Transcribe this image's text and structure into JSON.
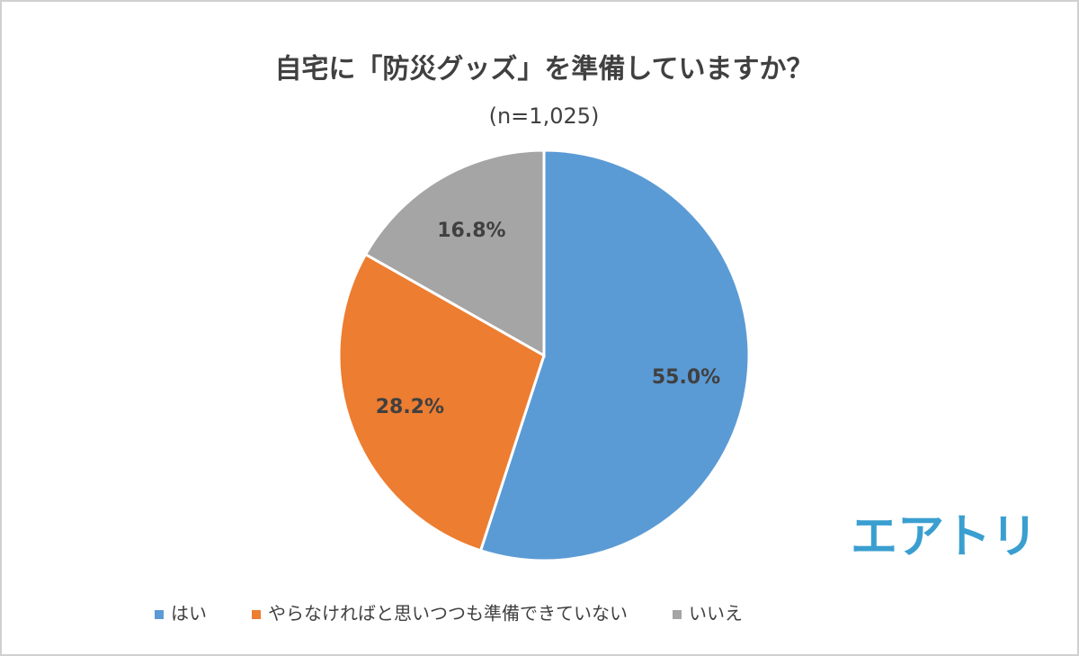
{
  "chart_data": {
    "type": "pie",
    "title": "自宅に「防災グッズ」を準備していますか？",
    "subtitle": "(n=1,025)",
    "categories": [
      "はい",
      "やらなければと思いつつも準備できていない",
      "いいえ"
    ],
    "values": [
      55.0,
      28.2,
      16.8
    ],
    "value_labels": [
      "55.0%",
      "28.2%",
      "16.8%"
    ],
    "colors": [
      "#5b9bd5",
      "#ed7d31",
      "#a5a5a5"
    ],
    "legend": "bottom",
    "logo": "エアトリ"
  }
}
